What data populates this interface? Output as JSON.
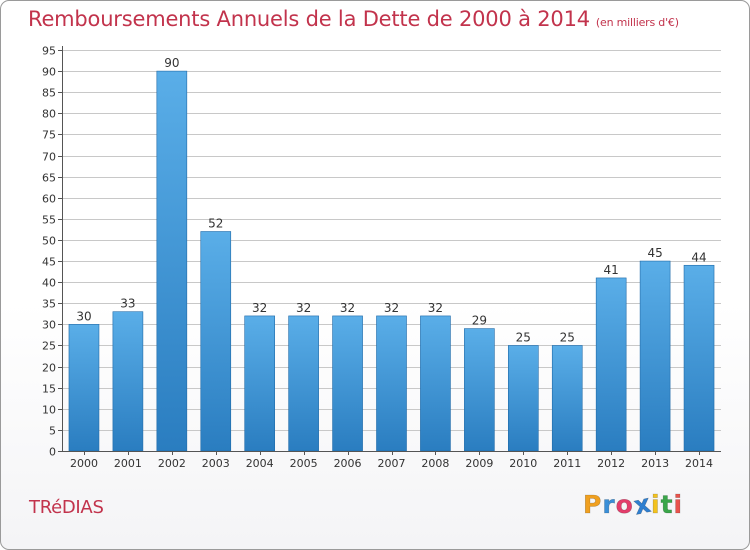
{
  "header": {
    "title": "Remboursements Annuels de la Dette de 2000 à 2014",
    "subtitle": "(en milliers d'€)"
  },
  "footer": {
    "place": "TRéDIAS",
    "brand": "Proxiti",
    "brand_letters": [
      {
        "ch": "P",
        "color": "#f0a020"
      },
      {
        "ch": "r",
        "color": "#3a8fd8"
      },
      {
        "ch": "o",
        "color": "#e43d6b"
      },
      {
        "ch": "x",
        "color": "#2f7fd0"
      },
      {
        "ch": "i",
        "color": "#f3c21e"
      },
      {
        "ch": "t",
        "color": "#3aa64a"
      },
      {
        "ch": "i",
        "color": "#e9534c"
      }
    ]
  },
  "colors": {
    "accent": "#c2334c",
    "bar_top": "#5aaee8",
    "bar_bottom": "#2a7dc0",
    "grid": "#c8c8c8",
    "axis_text": "#333333"
  },
  "chart_data": {
    "type": "bar",
    "title": "Remboursements Annuels de la Dette de 2000 à 2014",
    "subtitle": "(en milliers d'€)",
    "xlabel": "",
    "ylabel": "",
    "categories": [
      "2000",
      "2001",
      "2002",
      "2003",
      "2004",
      "2005",
      "2006",
      "2007",
      "2008",
      "2009",
      "2010",
      "2011",
      "2012",
      "2013",
      "2014"
    ],
    "values": [
      30,
      33,
      90,
      52,
      32,
      32,
      32,
      32,
      32,
      29,
      25,
      25,
      41,
      45,
      44
    ],
    "ylim": [
      0,
      95
    ],
    "yticks": [
      0,
      5,
      10,
      15,
      20,
      25,
      30,
      35,
      40,
      45,
      50,
      55,
      60,
      65,
      70,
      75,
      80,
      85,
      90,
      95
    ],
    "grid": true,
    "data_labels": true
  }
}
